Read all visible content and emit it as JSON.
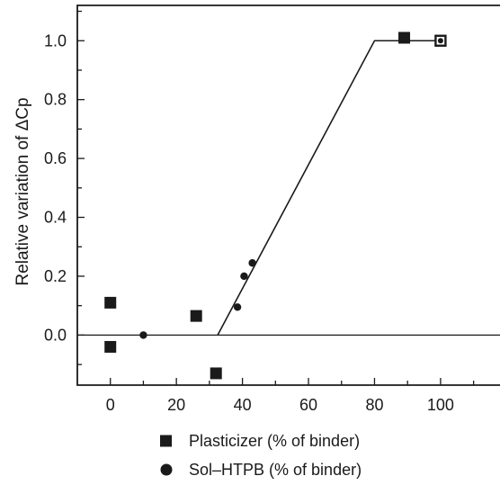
{
  "chart_data": {
    "type": "scatter",
    "ylabel": "Relative variation of ΔCp",
    "xlim": [
      -10,
      118
    ],
    "ylim": [
      -0.17,
      1.12
    ],
    "x_ticks": [
      0,
      20,
      40,
      60,
      80,
      100
    ],
    "y_ticks": [
      0.0,
      0.2,
      0.4,
      0.6,
      0.8,
      1.0
    ],
    "x_tick_labels": [
      "0",
      "20",
      "40",
      "60",
      "80",
      "100"
    ],
    "y_tick_labels": [
      "0.0",
      "0.2",
      "0.4",
      "0.6",
      "0.8",
      "1.0"
    ],
    "zero_line": 0,
    "fit_line": [
      [
        32.5,
        0.0
      ],
      [
        80,
        1.0
      ],
      [
        100,
        1.0
      ]
    ],
    "legend_placement": "bottom",
    "series": [
      {
        "name": "Plasticizer (% of binder)",
        "marker": "square",
        "points": [
          [
            0,
            0.11
          ],
          [
            0,
            -0.04
          ],
          [
            26,
            0.065
          ],
          [
            32,
            -0.13
          ],
          [
            89,
            1.01
          ],
          [
            100,
            1.0
          ]
        ]
      },
      {
        "name": "Sol–HTPB (% of binder)",
        "marker": "circle",
        "points": [
          [
            10,
            0.0
          ],
          [
            38.5,
            0.095
          ],
          [
            40.5,
            0.2
          ],
          [
            43,
            0.245
          ],
          [
            100,
            1.0
          ]
        ]
      }
    ]
  }
}
